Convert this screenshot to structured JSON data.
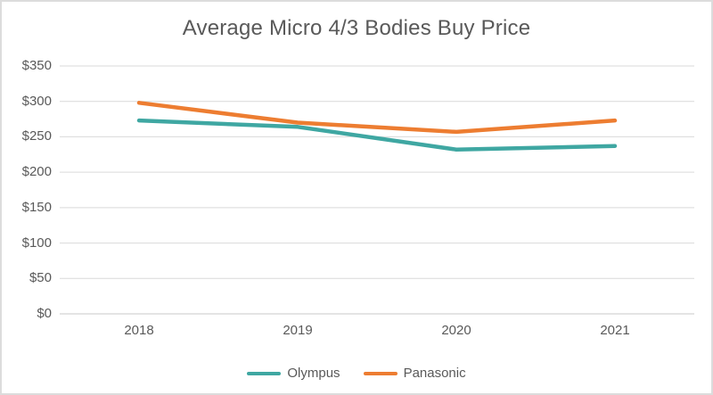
{
  "chart_data": {
    "type": "line",
    "title": "Average Micro 4/3 Bodies Buy Price",
    "categories": [
      "2018",
      "2019",
      "2020",
      "2021"
    ],
    "series": [
      {
        "name": "Olympus",
        "color": "#3FA7A2",
        "values": [
          273,
          264,
          232,
          237
        ]
      },
      {
        "name": "Panasonic",
        "color": "#ED7D31",
        "values": [
          298,
          270,
          257,
          273
        ]
      }
    ],
    "y_ticks": [
      {
        "label": "$350",
        "value": 350
      },
      {
        "label": "$300",
        "value": 300
      },
      {
        "label": "$250",
        "value": 250
      },
      {
        "label": "$200",
        "value": 200
      },
      {
        "label": "$150",
        "value": 150
      },
      {
        "label": "$100",
        "value": 100
      },
      {
        "label": "$50",
        "value": 50
      },
      {
        "label": "$0",
        "value": 0
      }
    ],
    "ylim": [
      0,
      350
    ],
    "xlabel": "",
    "ylabel": "",
    "grid": "horizontal",
    "legend_position": "bottom",
    "colors": {
      "title_text": "#595959",
      "axis_text": "#595959",
      "gridline": "#D9D9D9",
      "axis_line": "#C8C8C8",
      "frame_border": "#DCDCDC"
    }
  }
}
